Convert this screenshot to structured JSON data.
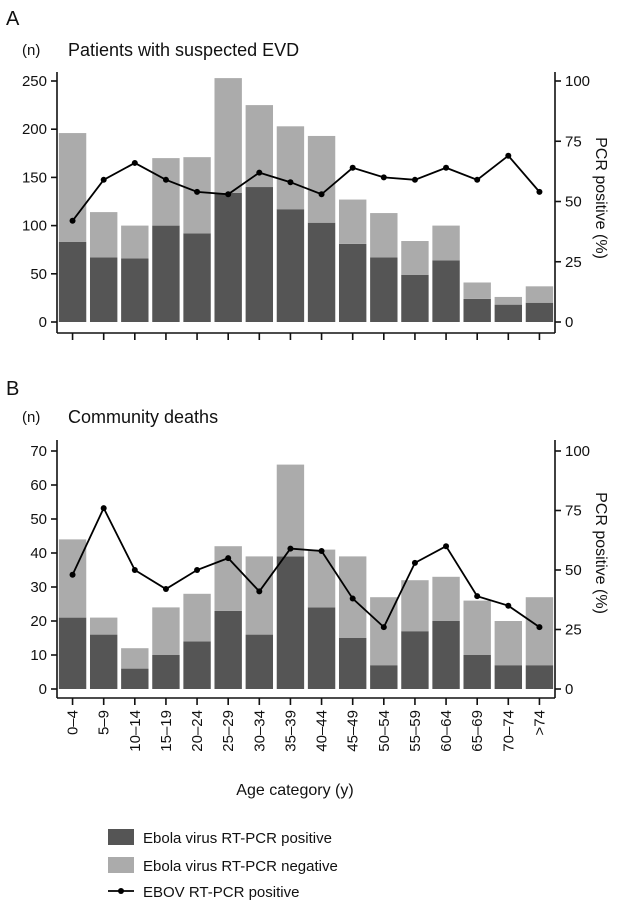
{
  "chart_data": [
    {
      "type": "bar",
      "panel": "A",
      "title": "Patients with suspected EVD",
      "ylabel": "(n)",
      "y2label": "PCR positive (%)",
      "ylim": [
        0,
        270
      ],
      "yticks": [
        0,
        50,
        100,
        150,
        200,
        250
      ],
      "y2lim": [
        0,
        103
      ],
      "y2ticks": [
        0,
        25,
        50,
        75,
        100
      ],
      "stacked": true,
      "categories": [
        "0–4",
        "5–9",
        "10–14",
        "15–19",
        "20–24",
        "25–29",
        "30–34",
        "35–39",
        "40–44",
        "45–49",
        "50–54",
        "55–59",
        "60–64",
        "65–69",
        "70–74",
        ">74"
      ],
      "series": [
        {
          "name": "Ebola virus RT-PCR positive",
          "kind": "bar",
          "color": "#555555",
          "values": [
            83,
            67,
            66,
            100,
            92,
            134,
            140,
            117,
            103,
            81,
            67,
            49,
            64,
            24,
            18,
            20
          ]
        },
        {
          "name": "Ebola virus RT-PCR negative",
          "kind": "bar",
          "color": "#ababab",
          "values": [
            113,
            47,
            34,
            70,
            79,
            119,
            85,
            86,
            90,
            46,
            46,
            35,
            36,
            17,
            8,
            17
          ]
        },
        {
          "name": "EBOV RT-PCR positive",
          "kind": "line",
          "axis": "right",
          "color": "#000000",
          "values": [
            42,
            59,
            66,
            59,
            54,
            53,
            62,
            58,
            53,
            64,
            60,
            59,
            64,
            59,
            69,
            54
          ]
        }
      ]
    },
    {
      "type": "bar",
      "panel": "B",
      "title": "Community deaths",
      "ylabel": "(n)",
      "y2label": "PCR positive (%)",
      "xlabel": "Age category (y)",
      "ylim": [
        0,
        73
      ],
      "yticks": [
        0,
        10,
        20,
        30,
        40,
        50,
        60,
        70
      ],
      "y2lim": [
        0,
        103
      ],
      "y2ticks": [
        0,
        25,
        50,
        75,
        100
      ],
      "stacked": true,
      "categories": [
        "0–4",
        "5–9",
        "10–14",
        "15–19",
        "20–24",
        "25–29",
        "30–34",
        "35–39",
        "40–44",
        "45–49",
        "50–54",
        "55–59",
        "60–64",
        "65–69",
        "70–74",
        ">74"
      ],
      "series": [
        {
          "name": "Ebola virus RT-PCR positive",
          "kind": "bar",
          "color": "#555555",
          "values": [
            21,
            16,
            6,
            10,
            14,
            23,
            16,
            39,
            24,
            15,
            7,
            17,
            20,
            10,
            7,
            7
          ]
        },
        {
          "name": "Ebola virus RT-PCR negative",
          "kind": "bar",
          "color": "#ababab",
          "values": [
            23,
            5,
            6,
            14,
            14,
            19,
            23,
            27,
            17,
            24,
            20,
            15,
            13,
            16,
            13,
            20
          ]
        },
        {
          "name": "EBOV RT-PCR positive",
          "kind": "line",
          "axis": "right",
          "color": "#000000",
          "values": [
            48,
            76,
            50,
            42,
            50,
            55,
            41,
            59,
            58,
            38,
            26,
            53,
            60,
            39,
            35,
            26
          ]
        }
      ]
    }
  ],
  "legend": {
    "placement": "bottom",
    "items": [
      {
        "label": "Ebola virus RT-PCR positive",
        "kind": "box",
        "color": "#555555"
      },
      {
        "label": "Ebola virus RT-PCR negative",
        "kind": "box",
        "color": "#ababab"
      },
      {
        "label": "EBOV RT-PCR positive",
        "kind": "line",
        "color": "#000000"
      }
    ]
  }
}
